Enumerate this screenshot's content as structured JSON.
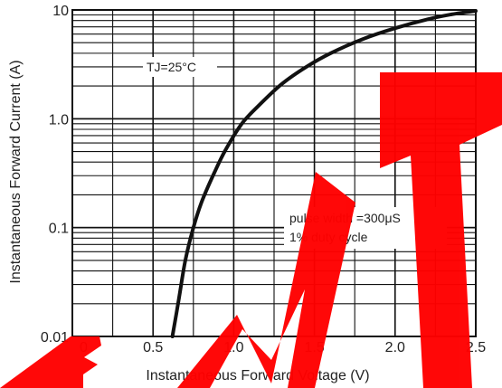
{
  "chart_data": {
    "type": "line",
    "title": "",
    "xlabel": "Instantaneous Forward Voltage (V)",
    "ylabel": "Instantaneous Forward Current (A)",
    "xlim": [
      0,
      2.5
    ],
    "ylim": [
      0.01,
      10
    ],
    "y_scale": "log",
    "grid": true,
    "x_ticks": [
      0,
      0.5,
      1.0,
      1.5,
      2.0,
      2.5
    ],
    "x_tick_labels": [
      "0",
      "0.5",
      "1.0",
      "1.5",
      "2.0",
      "2.5"
    ],
    "y_ticks": [
      0.01,
      0.1,
      1.0,
      10
    ],
    "y_tick_labels": [
      "0.01",
      "0.1",
      "1.0",
      "10"
    ],
    "annotations": [
      {
        "lines": [
          "TJ=25°C"
        ]
      },
      {
        "lines": [
          "pulse width =300μS",
          "1% duty cycle"
        ]
      }
    ],
    "series": [
      {
        "x": [
          0.62,
          0.66,
          0.7,
          0.75,
          0.8,
          0.88,
          0.95,
          1.05,
          1.15,
          1.3,
          1.45,
          1.6,
          1.8,
          2.0,
          2.2,
          2.35,
          2.5
        ],
        "y": [
          0.01,
          0.022,
          0.05,
          0.1,
          0.17,
          0.32,
          0.52,
          0.9,
          1.3,
          2.1,
          3.0,
          4.0,
          5.4,
          6.8,
          8.2,
          9.1,
          9.8
        ]
      }
    ],
    "line_color": "#111111",
    "grid_color": "#111111"
  },
  "watermark": {
    "text": "EMT",
    "color": "#ff0000"
  }
}
